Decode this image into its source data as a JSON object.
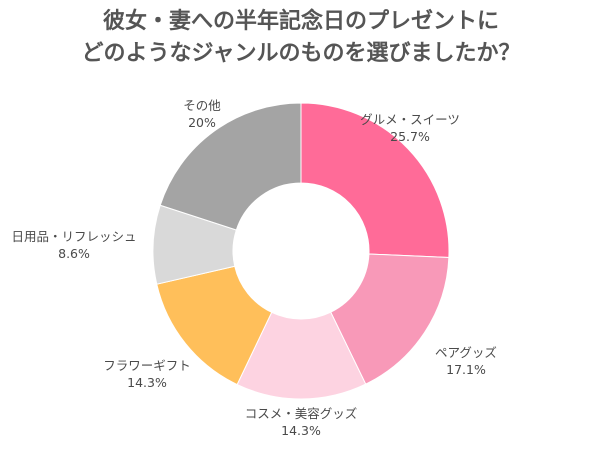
{
  "chart_data": {
    "type": "pie",
    "title_lines": [
      "彼女・妻への半年記念日のプレゼントに",
      "どのようなジャンルのものを選びましたか？"
    ],
    "slices": [
      {
        "label": "グルメ・スイーツ",
        "value": 25.7,
        "value_text": "25.7%",
        "color": "#ff6b98"
      },
      {
        "label": "ペアグッズ",
        "value": 17.1,
        "value_text": "17.1%",
        "color": "#f899b8"
      },
      {
        "label": "コスメ・美容グッズ",
        "value": 14.3,
        "value_text": "14.3%",
        "color": "#fdd3e1"
      },
      {
        "label": "フラワーギフト",
        "value": 14.3,
        "value_text": "14.3%",
        "color": "#ffbf5a"
      },
      {
        "label": "日用品・リフレッシュ",
        "value": 8.6,
        "value_text": "8.6%",
        "color": "#d9d9d9"
      },
      {
        "label": "その他",
        "value": 20.0,
        "value_text": "20%",
        "color": "#a4a4a4"
      }
    ],
    "donut": true,
    "start": "top",
    "direction": "clockwise"
  }
}
